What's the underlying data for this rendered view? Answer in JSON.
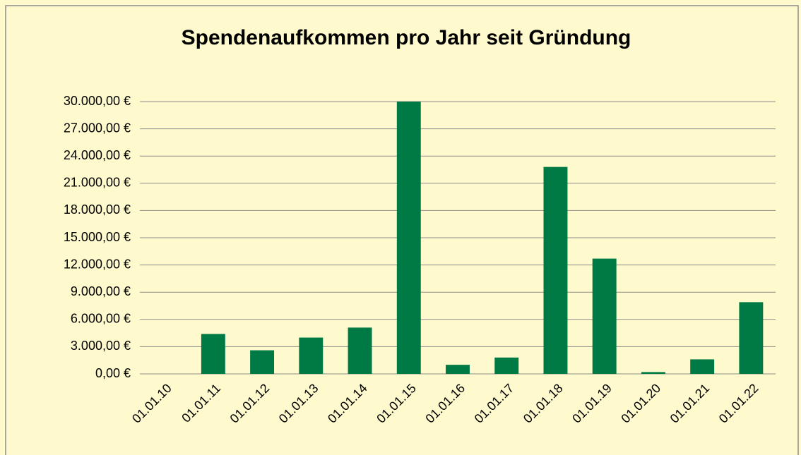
{
  "chart_data": {
    "type": "bar",
    "title": "Spendenaufkommen pro Jahr seit Gründung",
    "categories": [
      "01.01.10",
      "01.01.11",
      "01.01.12",
      "01.01.13",
      "01.01.14",
      "01.01.15",
      "01.01.16",
      "01.01.17",
      "01.01.18",
      "01.01.19",
      "01.01.20",
      "01.01.21",
      "01.01.22"
    ],
    "values": [
      0,
      4400,
      2600,
      4000,
      5100,
      30000,
      1000,
      1800,
      22800,
      12700,
      200,
      1600,
      7900
    ],
    "color": "#007a45",
    "ylim": [
      0,
      30000
    ],
    "yticks": [
      {
        "value": 0,
        "label": "0,00 €"
      },
      {
        "value": 3000,
        "label": "3.000,00 €"
      },
      {
        "value": 6000,
        "label": "6.000,00 €"
      },
      {
        "value": 9000,
        "label": "9.000,00 €"
      },
      {
        "value": 12000,
        "label": "12.000,00 €"
      },
      {
        "value": 15000,
        "label": "15.000,00 €"
      },
      {
        "value": 18000,
        "label": "18.000,00 €"
      },
      {
        "value": 21000,
        "label": "21.000,00 €"
      },
      {
        "value": 24000,
        "label": "24.000,00 €"
      },
      {
        "value": 27000,
        "label": "27.000,00 €"
      },
      {
        "value": 30000,
        "label": "30.000,00 €"
      }
    ],
    "grid": true
  }
}
